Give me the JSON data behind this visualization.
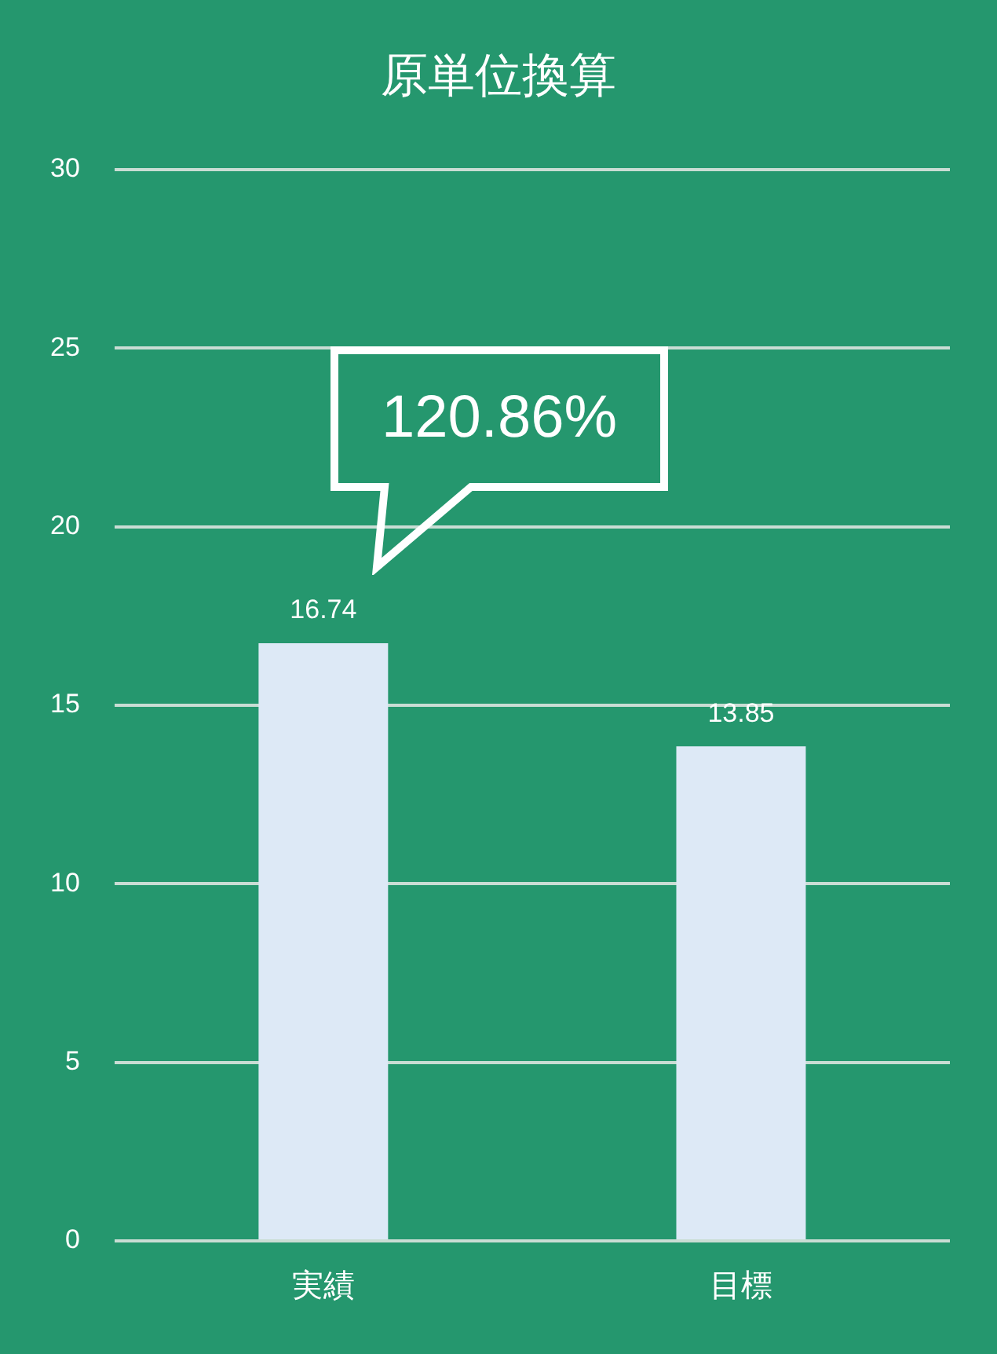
{
  "chart_data": {
    "type": "bar",
    "title": "原単位換算",
    "categories": [
      "実績",
      "目標"
    ],
    "values": [
      16.74,
      13.85
    ],
    "color": "#dde9f6",
    "ylim": [
      0,
      30
    ],
    "yticks": [
      0,
      5,
      10,
      15,
      20,
      25,
      30
    ],
    "grid": "y",
    "legend": false,
    "data_labels": true,
    "annotations": [
      "120.86%"
    ]
  }
}
